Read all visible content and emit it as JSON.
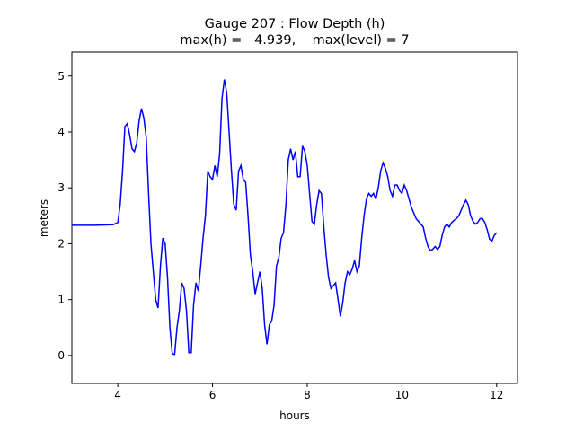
{
  "chart_data": {
    "type": "line",
    "title": "Gauge 207 : Flow Depth (h)",
    "subtitle": "max(h) =   4.939,    max(level) = 7",
    "x_label": "hours",
    "y_label": "meters",
    "xlim": [
      3.03,
      12.44
    ],
    "ylim": [
      -0.5,
      5.43
    ],
    "xticks": [
      4,
      6,
      8,
      10,
      12
    ],
    "yticks": [
      0,
      1,
      2,
      3,
      4,
      5
    ],
    "series": [
      {
        "color": "#0000ff",
        "x": [
          3.03,
          3.5,
          3.9,
          4.0,
          4.05,
          4.1,
          4.15,
          4.2,
          4.25,
          4.3,
          4.35,
          4.4,
          4.45,
          4.5,
          4.55,
          4.6,
          4.65,
          4.7,
          4.75,
          4.8,
          4.85,
          4.9,
          4.95,
          5.0,
          5.05,
          5.1,
          5.15,
          5.2,
          5.25,
          5.3,
          5.35,
          5.4,
          5.45,
          5.5,
          5.55,
          5.6,
          5.65,
          5.7,
          5.75,
          5.8,
          5.85,
          5.9,
          5.95,
          6.0,
          6.05,
          6.1,
          6.15,
          6.2,
          6.25,
          6.3,
          6.35,
          6.4,
          6.45,
          6.5,
          6.55,
          6.6,
          6.65,
          6.7,
          6.75,
          6.8,
          6.85,
          6.9,
          6.95,
          7.0,
          7.05,
          7.1,
          7.15,
          7.2,
          7.25,
          7.3,
          7.35,
          7.4,
          7.45,
          7.5,
          7.55,
          7.6,
          7.65,
          7.7,
          7.75,
          7.8,
          7.85,
          7.9,
          7.95,
          8.0,
          8.05,
          8.1,
          8.15,
          8.2,
          8.25,
          8.3,
          8.35,
          8.4,
          8.45,
          8.5,
          8.55,
          8.6,
          8.65,
          8.7,
          8.75,
          8.8,
          8.85,
          8.9,
          8.95,
          9.0,
          9.05,
          9.1,
          9.15,
          9.2,
          9.25,
          9.3,
          9.35,
          9.4,
          9.45,
          9.5,
          9.55,
          9.6,
          9.65,
          9.7,
          9.75,
          9.8,
          9.85,
          9.9,
          9.95,
          10.0,
          10.05,
          10.1,
          10.15,
          10.2,
          10.25,
          10.3,
          10.35,
          10.4,
          10.45,
          10.5,
          10.55,
          10.6,
          10.65,
          10.7,
          10.75,
          10.8,
          10.85,
          10.9,
          10.95,
          11.0,
          11.05,
          11.1,
          11.15,
          11.2,
          11.25,
          11.3,
          11.35,
          11.4,
          11.45,
          11.5,
          11.55,
          11.6,
          11.65,
          11.7,
          11.75,
          11.8,
          11.85,
          11.9,
          11.95,
          12.0
        ],
        "values": [
          2.33,
          2.33,
          2.34,
          2.38,
          2.7,
          3.3,
          4.1,
          4.15,
          3.95,
          3.7,
          3.65,
          3.8,
          4.2,
          4.42,
          4.25,
          3.9,
          2.9,
          2.0,
          1.5,
          1.0,
          0.85,
          1.6,
          2.1,
          2.0,
          1.4,
          0.5,
          0.03,
          0.02,
          0.5,
          0.8,
          1.3,
          1.2,
          0.8,
          0.05,
          0.05,
          0.9,
          1.3,
          1.15,
          1.6,
          2.1,
          2.5,
          3.3,
          3.2,
          3.15,
          3.4,
          3.2,
          3.6,
          4.6,
          4.939,
          4.7,
          4.0,
          3.3,
          2.7,
          2.6,
          3.3,
          3.4,
          3.15,
          3.1,
          2.5,
          1.8,
          1.5,
          1.1,
          1.3,
          1.5,
          1.2,
          0.55,
          0.2,
          0.55,
          0.62,
          0.9,
          1.6,
          1.75,
          2.1,
          2.2,
          2.7,
          3.5,
          3.7,
          3.5,
          3.65,
          3.2,
          3.2,
          3.75,
          3.65,
          3.4,
          2.9,
          2.4,
          2.35,
          2.7,
          2.95,
          2.9,
          2.3,
          1.8,
          1.4,
          1.2,
          1.25,
          1.3,
          1.0,
          0.7,
          0.95,
          1.3,
          1.5,
          1.45,
          1.55,
          1.7,
          1.5,
          1.6,
          2.1,
          2.5,
          2.8,
          2.9,
          2.85,
          2.9,
          2.8,
          3.0,
          3.3,
          3.45,
          3.35,
          3.2,
          2.95,
          2.85,
          3.05,
          3.05,
          2.95,
          2.9,
          3.05,
          2.95,
          2.8,
          2.65,
          2.55,
          2.45,
          2.4,
          2.35,
          2.3,
          2.1,
          1.95,
          1.88,
          1.9,
          1.95,
          1.9,
          1.95,
          2.15,
          2.3,
          2.35,
          2.3,
          2.38,
          2.42,
          2.45,
          2.5,
          2.6,
          2.7,
          2.78,
          2.7,
          2.5,
          2.4,
          2.35,
          2.38,
          2.45,
          2.45,
          2.38,
          2.25,
          2.08,
          2.05,
          2.15,
          2.2
        ]
      }
    ]
  }
}
